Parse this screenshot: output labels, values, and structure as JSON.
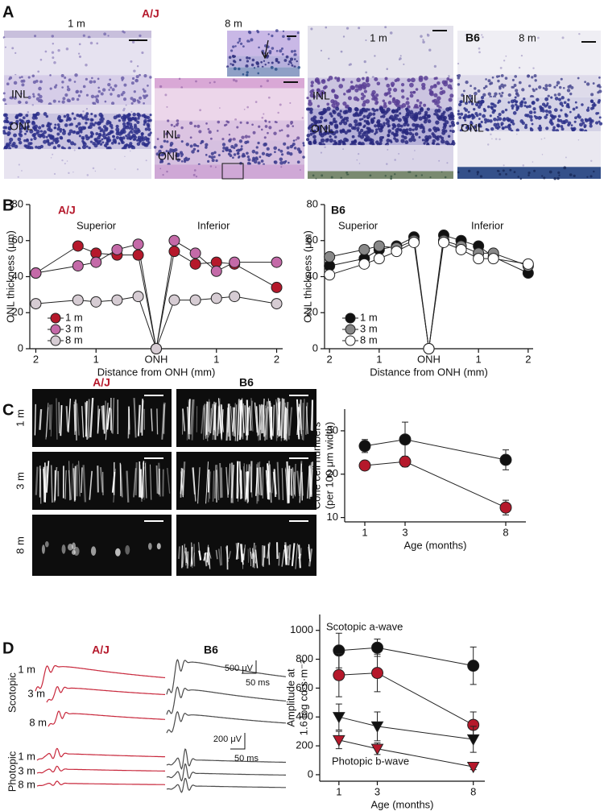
{
  "panel_labels": [
    "A",
    "B",
    "C",
    "D"
  ],
  "panel_a": {
    "strains": [
      "A/J",
      "B6"
    ],
    "ages": [
      "1 m",
      "8 m",
      "1 m",
      "8 m"
    ],
    "layers": [
      "INL",
      "ONL"
    ]
  },
  "panel_c": {
    "strains": [
      "A/J",
      "B6"
    ],
    "ages": [
      "1 m",
      "3 m",
      "8 m"
    ]
  },
  "panel_d": {
    "strains": [
      "A/J",
      "B6"
    ],
    "conditions": [
      "Scotopic",
      "Photopic"
    ],
    "ages": [
      "1 m",
      "3 m",
      "8 m"
    ],
    "scale_bars": [
      "500 μV",
      "50 ms",
      "200 μV",
      "50 ms"
    ]
  },
  "chart_data": [
    {
      "type": "line",
      "title": "A/J",
      "title_color": "#b5182b",
      "annotations": [
        "Superior",
        "Inferior"
      ],
      "xlabel": "Distance from ONH (mm)",
      "ylabel": [
        "ONL thickness (μm)"
      ],
      "x": [
        -2,
        -1.3,
        -1,
        -0.65,
        -0.3,
        0,
        0.3,
        0.65,
        1,
        1.3,
        2
      ],
      "xlim": [
        -2.1,
        2.1
      ],
      "xticks": [
        {
          "value": -2,
          "label": "2"
        },
        {
          "value": -1,
          "label": "1"
        },
        {
          "value": 0,
          "label": "ONH"
        },
        1,
        2
      ],
      "ylim": [
        0,
        80
      ],
      "yticks": [
        0,
        20,
        40,
        60,
        80
      ],
      "legend": "lower left",
      "series": [
        {
          "name": "1 m",
          "color": "#b5182b",
          "marker": "circle",
          "values": [
            42,
            57,
            53,
            52,
            52,
            0,
            54,
            47,
            48,
            47,
            34
          ]
        },
        {
          "name": "3 m",
          "color": "#c46aa8",
          "marker": "circle",
          "values": [
            42,
            46,
            48,
            55,
            58,
            0,
            60,
            53,
            43,
            48,
            48
          ]
        },
        {
          "name": "8 m",
          "color": "#d6ccd3",
          "marker": "circle",
          "values": [
            25,
            27,
            26,
            27,
            29,
            0,
            27,
            27,
            28,
            29,
            25
          ]
        }
      ]
    },
    {
      "type": "line",
      "title": "B6",
      "annotations": [
        "Superior",
        "Inferior"
      ],
      "xlabel": "Distance from ONH (mm)",
      "ylabel": [
        "ONL thickness (μm)"
      ],
      "x": [
        -2,
        -1.3,
        -1,
        -0.65,
        -0.3,
        0,
        0.3,
        0.65,
        1,
        1.3,
        2
      ],
      "xlim": [
        -2.1,
        2.1
      ],
      "xticks": [
        {
          "value": -2,
          "label": "2"
        },
        {
          "value": -1,
          "label": "1"
        },
        {
          "value": 0,
          "label": "ONH"
        },
        1,
        2
      ],
      "ylim": [
        0,
        80
      ],
      "yticks": [
        0,
        20,
        40,
        60,
        80
      ],
      "legend": "lower left",
      "series": [
        {
          "name": "1 m",
          "color": "#111111",
          "marker": "circle",
          "values": [
            46,
            50,
            55,
            57,
            62,
            0,
            63,
            60,
            57,
            51,
            42
          ]
        },
        {
          "name": "3 m",
          "color": "#888888",
          "marker": "circle",
          "values": [
            51,
            55,
            57,
            56,
            60,
            0,
            60,
            57,
            53,
            53,
            46
          ]
        },
        {
          "name": "8 m",
          "color": "#ffffff",
          "marker": "circle",
          "values": [
            41,
            47,
            50,
            54,
            59,
            0,
            59,
            55,
            50,
            50,
            47
          ]
        }
      ]
    },
    {
      "type": "line",
      "xlabel": "Age (months)",
      "ylabel": [
        "Cone cell numbers",
        "(per 100 μm width)"
      ],
      "x": [
        1,
        3,
        8
      ],
      "xlim": [
        0,
        9
      ],
      "xticks": [
        1,
        3,
        8
      ],
      "ylim": [
        9,
        35
      ],
      "yticks": [
        10,
        20,
        30
      ],
      "series": [
        {
          "color": "#111111",
          "marker": "circle",
          "values": [
            26.5,
            28,
            23.3
          ],
          "errors": [
            1.5,
            4,
            2.3
          ]
        },
        {
          "color": "#b5182b",
          "marker": "circle",
          "values": [
            22,
            22.9,
            12.3
          ],
          "errors": [
            1,
            1.2,
            1.7
          ]
        }
      ]
    },
    {
      "type": "line",
      "annotations": [
        "Scotopic a-wave",
        "Photopic b-wave"
      ],
      "xlabel": "Age (months)",
      "ylabel": [
        "Amplitude at",
        "1.6 log cd·s·m⁻²"
      ],
      "x": [
        1,
        3,
        8
      ],
      "xlim": [
        0,
        8.6
      ],
      "xticks": [
        1,
        3,
        8
      ],
      "ylim": [
        -45,
        1110
      ],
      "yticks": [
        0,
        200,
        400,
        600,
        800,
        1000
      ],
      "series": [
        {
          "color": "#111111",
          "marker": "circle",
          "values": [
            860,
            880,
            755
          ],
          "errors": [
            120,
            60,
            130
          ]
        },
        {
          "color": "#b5182b",
          "marker": "circle",
          "values": [
            690,
            705,
            345
          ],
          "errors": [
            150,
            130,
            90
          ]
        },
        {
          "color": "#111111",
          "marker": "triangle",
          "values": [
            400,
            335,
            245
          ],
          "errors": [
            90,
            100,
            90
          ]
        },
        {
          "color": "#b5182b",
          "marker": "triangle",
          "values": [
            240,
            180,
            55
          ],
          "errors": [
            60,
            40,
            20
          ]
        }
      ]
    }
  ]
}
